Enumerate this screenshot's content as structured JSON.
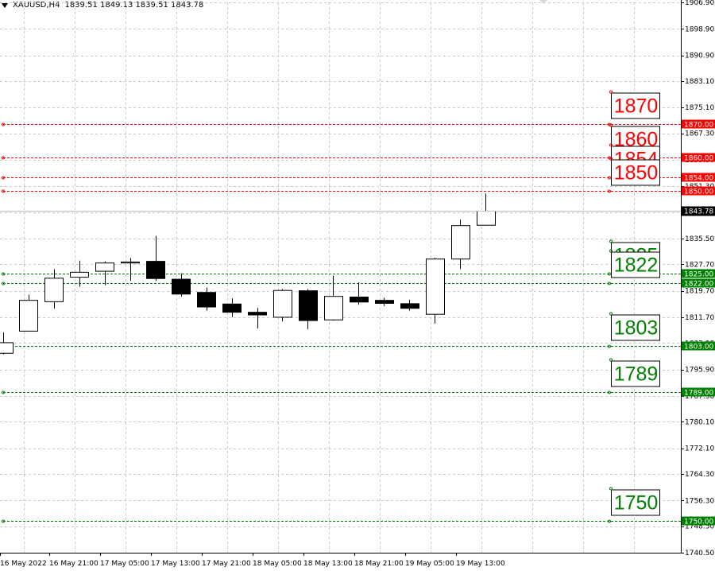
{
  "header": {
    "symbol": "XAUUSD,H4",
    "ohlc": "1839.51 1849.13 1839.51 1843.78"
  },
  "colors": {
    "resistance": "#ff0000",
    "support": "#008000",
    "grid": "#c8c8c8",
    "candle": "#000000",
    "current_price_bg": "#000000"
  },
  "chart_data": {
    "type": "candlestick",
    "title": "XAUUSD,H4",
    "ylim": [
      1740.5,
      1906.9
    ],
    "grid": true,
    "y_ticks": [
      "1906.90",
      "1898.90",
      "1890.90",
      "1883.10",
      "1875.10",
      "1867.30",
      "1859.30",
      "1851.30",
      "1843.50",
      "1835.50",
      "1827.70",
      "1819.70",
      "1811.70",
      "1803.90",
      "1795.90",
      "1787.90",
      "1780.10",
      "1772.10",
      "1764.30",
      "1756.30",
      "1748.50",
      "1740.50"
    ],
    "x_labels": [
      "16 May 2022",
      "16 May 21:00",
      "17 May 05:00",
      "17 May 13:00",
      "17 May 21:00",
      "18 May 05:00",
      "18 May 13:00",
      "18 May 21:00",
      "19 May 05:00",
      "19 May 13:00"
    ],
    "candles": [
      {
        "o": 1800.8,
        "h": 1807.1,
        "l": 1800.5,
        "c": 1804.0
      },
      {
        "o": 1807.5,
        "h": 1818.5,
        "l": 1807.5,
        "c": 1816.8
      },
      {
        "o": 1816.4,
        "h": 1826.2,
        "l": 1814.3,
        "c": 1823.5
      },
      {
        "o": 1823.8,
        "h": 1828.8,
        "l": 1820.9,
        "c": 1825.3
      },
      {
        "o": 1825.6,
        "h": 1828.6,
        "l": 1821.4,
        "c": 1828.1
      },
      {
        "o": 1828.1,
        "h": 1829.6,
        "l": 1822.7,
        "c": 1828.4
      },
      {
        "o": 1828.6,
        "h": 1836.3,
        "l": 1822.7,
        "c": 1823.4
      },
      {
        "o": 1823.2,
        "h": 1825.0,
        "l": 1818.0,
        "c": 1818.7
      },
      {
        "o": 1819.2,
        "h": 1820.7,
        "l": 1813.7,
        "c": 1814.8
      },
      {
        "o": 1815.7,
        "h": 1817.4,
        "l": 1811.7,
        "c": 1813.2
      },
      {
        "o": 1813.2,
        "h": 1814.5,
        "l": 1808.3,
        "c": 1812.4
      },
      {
        "o": 1811.7,
        "h": 1820.2,
        "l": 1810.4,
        "c": 1819.8
      },
      {
        "o": 1819.7,
        "h": 1820.2,
        "l": 1808.1,
        "c": 1810.7
      },
      {
        "o": 1810.9,
        "h": 1824.3,
        "l": 1810.7,
        "c": 1818.0
      },
      {
        "o": 1817.8,
        "h": 1822.2,
        "l": 1815.5,
        "c": 1816.3
      },
      {
        "o": 1816.8,
        "h": 1817.6,
        "l": 1815.1,
        "c": 1815.9
      },
      {
        "o": 1815.8,
        "h": 1817.0,
        "l": 1813.7,
        "c": 1814.4
      },
      {
        "o": 1812.6,
        "h": 1829.7,
        "l": 1809.8,
        "c": 1829.3
      },
      {
        "o": 1829.3,
        "h": 1841.2,
        "l": 1826.3,
        "c": 1839.4
      },
      {
        "o": 1839.51,
        "h": 1849.13,
        "l": 1839.51,
        "c": 1843.78
      }
    ],
    "current_price": "1843.78",
    "levels": [
      {
        "price": 1870.0,
        "label": "1870",
        "axis_label": "1870.00",
        "kind": "resistance"
      },
      {
        "price": 1860.0,
        "label": "1860",
        "axis_label": "1860.00",
        "kind": "resistance"
      },
      {
        "price": 1854.0,
        "label": "1854",
        "axis_label": "1854.00",
        "kind": "resistance"
      },
      {
        "price": 1850.0,
        "label": "1850",
        "axis_label": "1850.00",
        "kind": "resistance"
      },
      {
        "price": 1825.0,
        "label": "1825",
        "axis_label": "1825.00",
        "kind": "support"
      },
      {
        "price": 1822.0,
        "label": "1822",
        "axis_label": "1822.00",
        "kind": "support"
      },
      {
        "price": 1803.0,
        "label": "1803",
        "axis_label": "1803.00",
        "kind": "support"
      },
      {
        "price": 1789.0,
        "label": "1789",
        "axis_label": "1789.00",
        "kind": "support"
      },
      {
        "price": 1750.0,
        "label": "1750",
        "axis_label": "1750.00",
        "kind": "support"
      }
    ]
  }
}
